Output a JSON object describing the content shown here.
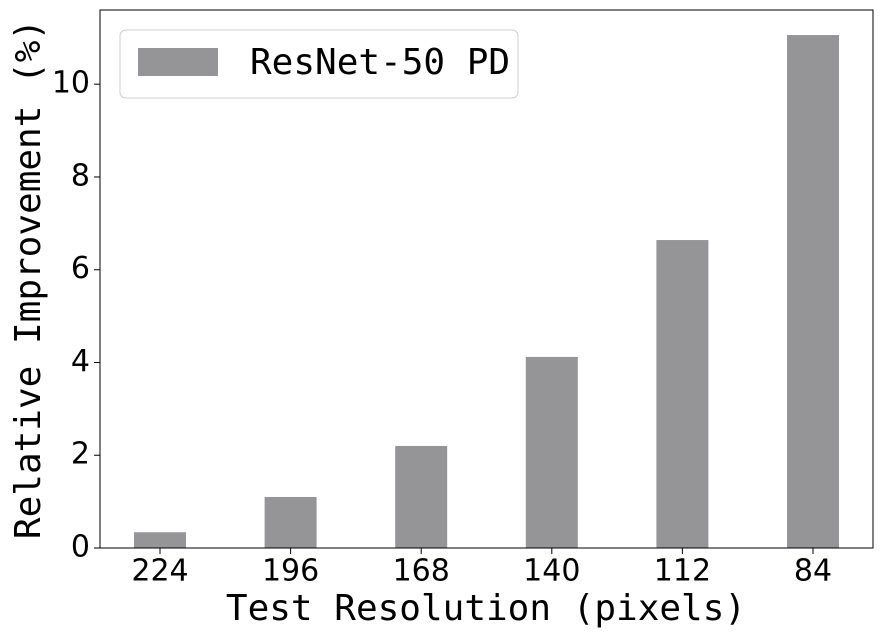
{
  "chart_data": {
    "type": "bar",
    "x_label": "Test Resolution (pixels)",
    "y_label": "Relative Improvement (%)",
    "categories": [
      "224",
      "196",
      "168",
      "140",
      "112",
      "84"
    ],
    "series": [
      {
        "name": "ResNet-50 PD",
        "color": "#959598",
        "values": [
          0.34,
          1.1,
          2.2,
          4.12,
          6.64,
          11.06
        ]
      }
    ],
    "ylim": [
      0,
      11.6
    ],
    "yticks": [
      0,
      2,
      4,
      6,
      8,
      10
    ],
    "legend": "upper left",
    "grid": false
  }
}
